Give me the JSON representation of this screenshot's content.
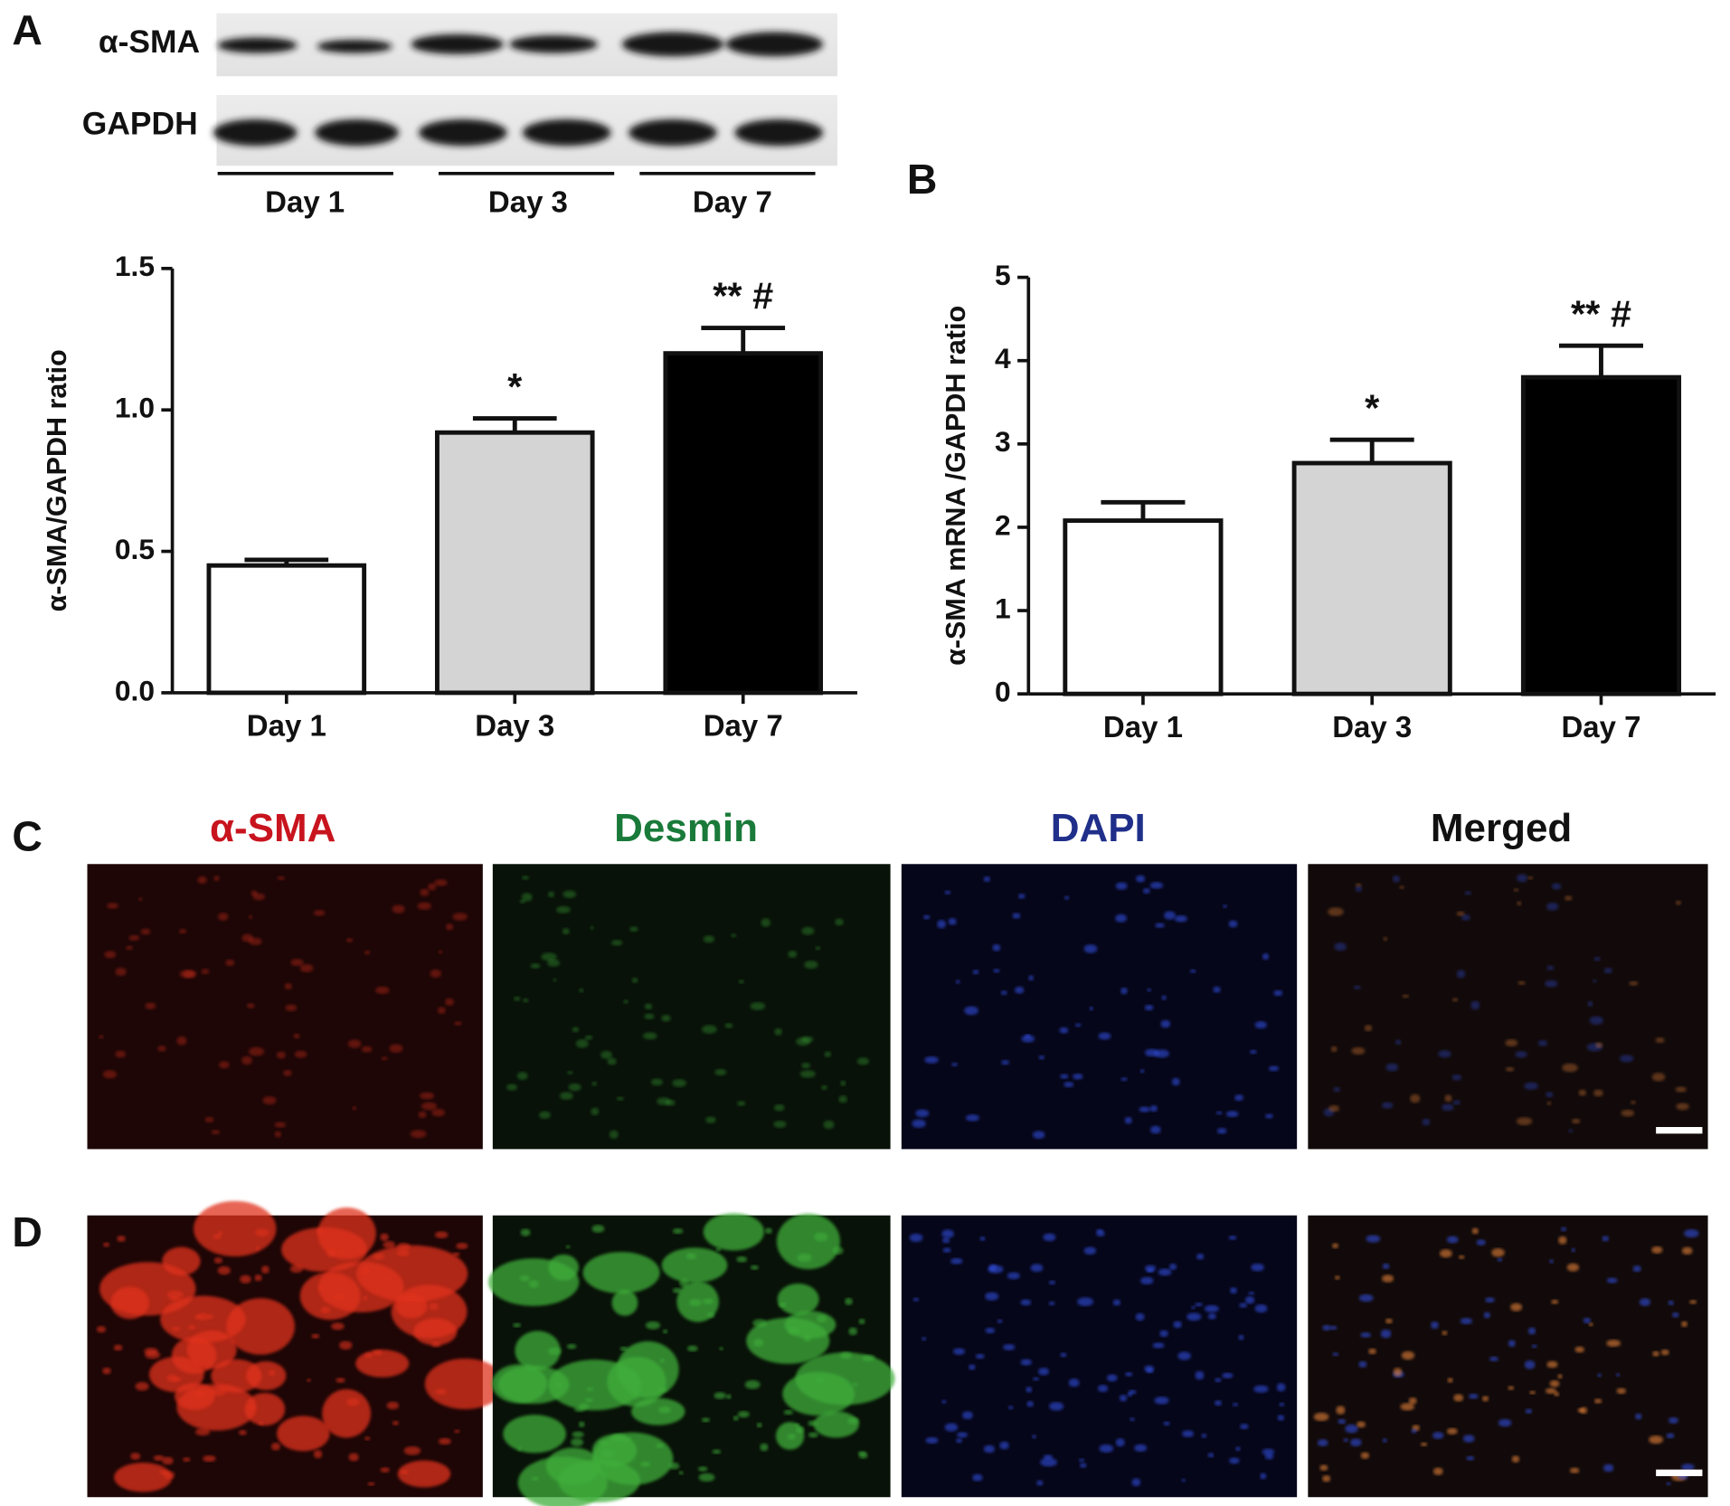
{
  "panel_labels": [
    "A",
    "B",
    "C",
    "D"
  ],
  "blot": {
    "rows": [
      "α-SMA",
      "GAPDH"
    ],
    "groups": [
      "Day 1",
      "Day 3",
      "Day 7"
    ]
  },
  "images": {
    "columns": [
      "α-SMA",
      "Desmin",
      "DAPI",
      "Merged"
    ]
  },
  "chart_data": [
    {
      "type": "bar",
      "ylabel": "α-SMA/GAPDH ratio",
      "categories": [
        "Day 1",
        "Day 3",
        "Day 7"
      ],
      "values": [
        0.45,
        0.92,
        1.2
      ],
      "errors": [
        0.02,
        0.05,
        0.09
      ],
      "annotations": [
        null,
        "*",
        "** #"
      ],
      "colors": [
        "#ffffff",
        "#d4d4d4",
        "#000000"
      ],
      "ylim": [
        0,
        1.5
      ],
      "yticks": [
        {
          "value": 0,
          "label": "0.0"
        },
        0.5,
        {
          "value": 1,
          "label": "1.0"
        },
        1.5
      ]
    },
    {
      "type": "bar",
      "ylabel": "α-SMA mRNA /GAPDH ratio",
      "categories": [
        "Day 1",
        "Day 3",
        "Day 7"
      ],
      "values": [
        2.08,
        2.77,
        3.8
      ],
      "errors": [
        0.22,
        0.28,
        0.38
      ],
      "annotations": [
        null,
        "*",
        "** #"
      ],
      "colors": [
        "#ffffff",
        "#d4d4d4",
        "#000000"
      ],
      "ylim": [
        0,
        5
      ],
      "yticks": [
        0,
        1,
        2,
        3,
        4,
        5
      ]
    }
  ]
}
